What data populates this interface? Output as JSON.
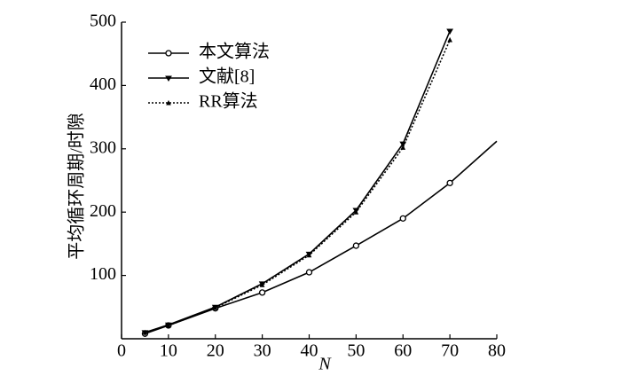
{
  "chart_data": {
    "type": "line",
    "xlabel": "N",
    "ylabel": "平均循环周期/时隙",
    "xlim": [
      0,
      80
    ],
    "xticks": [
      0,
      10,
      20,
      30,
      40,
      50,
      60,
      70,
      80
    ],
    "ylim": [
      0,
      500
    ],
    "yticks": [
      100,
      200,
      300,
      400,
      500
    ],
    "legend": "upper left",
    "series": [
      {
        "name": "本文算法",
        "color": "#000000",
        "marker": "circle",
        "dash": "solid",
        "x": [
          5,
          10,
          20,
          30,
          40,
          50,
          60,
          70,
          80
        ],
        "values": [
          8,
          21,
          48,
          73,
          105,
          147,
          190,
          246,
          312
        ]
      },
      {
        "name": "文献[8]",
        "color": "#000000",
        "marker": "triangle-down",
        "dash": "solid",
        "x": [
          5,
          10,
          20,
          30,
          40,
          50,
          60,
          70
        ],
        "values": [
          10,
          22,
          50,
          87,
          134,
          203,
          308,
          486
        ]
      },
      {
        "name": "RR算法",
        "color": "#000000",
        "marker": "triangle-up",
        "dash": "dotted",
        "x": [
          5,
          10,
          20,
          30,
          40,
          50,
          60,
          70
        ],
        "values": [
          10,
          21,
          49,
          85,
          132,
          200,
          302,
          472
        ]
      }
    ]
  }
}
